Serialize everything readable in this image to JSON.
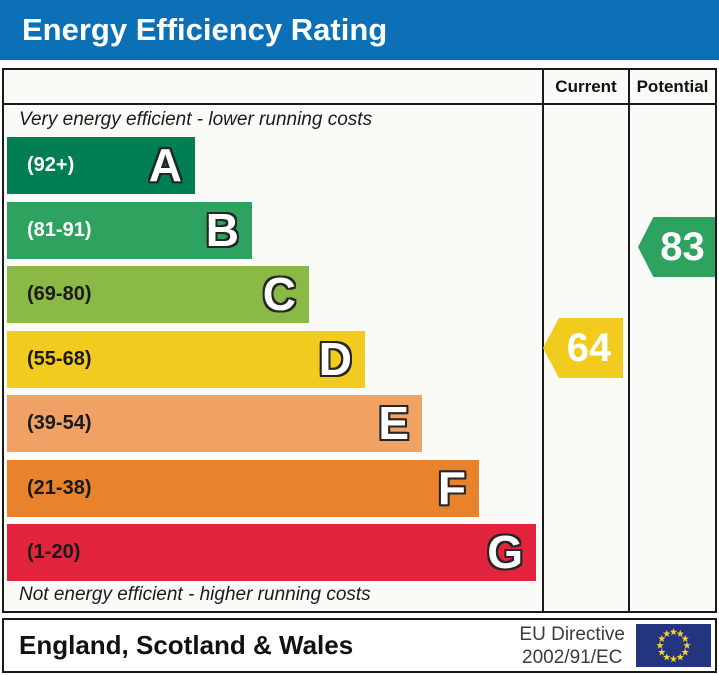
{
  "title": "Energy Efficiency Rating",
  "columns": {
    "current": "Current",
    "potential": "Potential"
  },
  "notes": {
    "top": "Very energy efficient - lower running costs",
    "bottom": "Not energy efficient - higher running costs"
  },
  "bands": [
    {
      "letter": "A",
      "range_label": "(92+)",
      "lo": 92,
      "hi": 100,
      "color": "#007d52",
      "range_text_color": "#ffffff"
    },
    {
      "letter": "B",
      "range_label": "(81-91)",
      "lo": 81,
      "hi": 91,
      "color": "#2ea35f",
      "range_text_color": "#ffffff"
    },
    {
      "letter": "C",
      "range_label": "(69-80)",
      "lo": 69,
      "hi": 80,
      "color": "#8aba45",
      "range_text_color": "#1a1a1a"
    },
    {
      "letter": "D",
      "range_label": "(55-68)",
      "lo": 55,
      "hi": 68,
      "color": "#f1cb1e",
      "range_text_color": "#1a1a1a"
    },
    {
      "letter": "E",
      "range_label": "(39-54)",
      "lo": 39,
      "hi": 54,
      "color": "#f0a265",
      "range_text_color": "#1a1a1a"
    },
    {
      "letter": "F",
      "range_label": "(21-38)",
      "lo": 21,
      "hi": 38,
      "color": "#e8832b",
      "range_text_color": "#1a1a1a"
    },
    {
      "letter": "G",
      "range_label": "(1-20)",
      "lo": 1,
      "hi": 20,
      "color": "#e2243c",
      "range_text_color": "#1a1a1a"
    }
  ],
  "ratings": {
    "current": {
      "value": 64,
      "band": "D",
      "color": "#f1cb1e"
    },
    "potential": {
      "value": 83,
      "band": "B",
      "color": "#2ea35f"
    }
  },
  "footer": {
    "region": "England, Scotland & Wales",
    "directive_line1": "EU Directive",
    "directive_line2": "2002/91/EC",
    "flag_colors": {
      "field": "#24357f",
      "stars": "#f8d12a"
    }
  },
  "theme": {
    "title_bg": "#0c70b6",
    "title_text": "#ffffff",
    "border": "#1a1a1a",
    "panel_bg": "#fafaf7"
  },
  "chart_data": {
    "type": "bar",
    "title": "Energy Efficiency Rating",
    "categories": [
      "A",
      "B",
      "C",
      "D",
      "E",
      "F",
      "G"
    ],
    "band_ranges": [
      "92+",
      "81-91",
      "69-80",
      "55-68",
      "39-54",
      "21-38",
      "1-20"
    ],
    "band_colors": [
      "#007d52",
      "#2ea35f",
      "#8aba45",
      "#f1cb1e",
      "#f0a265",
      "#e8832b",
      "#e2243c"
    ],
    "series": [
      {
        "name": "Current",
        "value": 64,
        "band": "D"
      },
      {
        "name": "Potential",
        "value": 83,
        "band": "B"
      }
    ],
    "scale": [
      1,
      100
    ],
    "annotations": [
      "Very energy efficient - lower running costs",
      "Not energy efficient - higher running costs"
    ],
    "region": "England, Scotland & Wales",
    "directive": "EU Directive 2002/91/EC"
  }
}
